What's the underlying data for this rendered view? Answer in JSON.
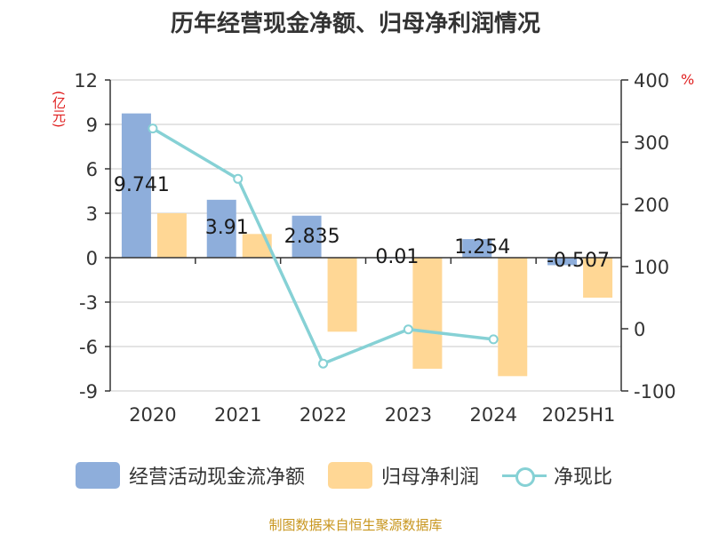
{
  "title": "历年经营现金净额、归母净利润情况",
  "source": "制图数据来自恒生聚源数据库",
  "colors": {
    "cash": "#8eaedb",
    "profit": "#ffd795",
    "ratio": "#86d1d5",
    "axis_label": "#e02020",
    "source": "#c8961e"
  },
  "chart_data": {
    "type": "bar",
    "title": "历年经营现金净额、归母净利润情况",
    "categories": [
      "2020",
      "2021",
      "2022",
      "2023",
      "2024",
      "2025H1"
    ],
    "ylabel": "(亿元)",
    "y2label": "%",
    "ylim": [
      -9,
      12
    ],
    "y2lim": [
      -100,
      400
    ],
    "yticks": [
      "12",
      "9",
      "6",
      "3",
      "0",
      "-3",
      "-6",
      "-9"
    ],
    "y2ticks": [
      "400",
      "300",
      "200",
      "100",
      "0",
      "-100"
    ],
    "series": [
      {
        "name": "经营活动现金流净额",
        "type": "bar",
        "axis": "left",
        "values": [
          9.741,
          3.91,
          2.835,
          0.01,
          1.254,
          -0.507
        ],
        "labels": [
          "9.741",
          "3.91",
          "2.835",
          "0.01",
          "1.254",
          "-0.507"
        ]
      },
      {
        "name": "归母净利润",
        "type": "bar",
        "axis": "left",
        "values": [
          3.0,
          1.6,
          -5.0,
          -7.5,
          -8.0,
          -2.7
        ]
      },
      {
        "name": "净现比",
        "type": "line",
        "axis": "right",
        "values": [
          322,
          241,
          -56,
          -1,
          -17,
          null
        ]
      }
    ],
    "legend_position": "bottom",
    "grid": true
  }
}
